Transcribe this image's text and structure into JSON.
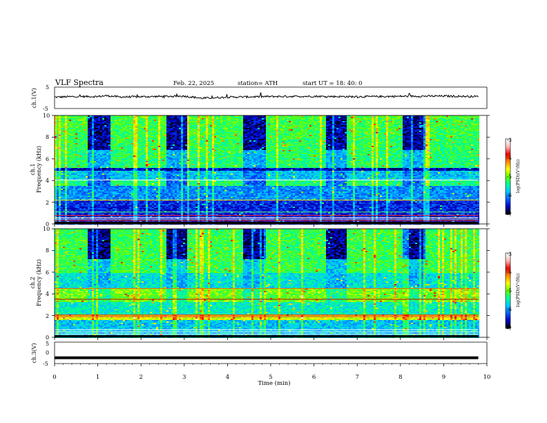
{
  "header": {
    "title": "VLF Spectra",
    "date": "Feb. 22, 2025",
    "station": "station= ATH",
    "start": "start UT =  18: 40: 0"
  },
  "chart_data": [
    {
      "type": "line",
      "panel": "ch1-waveform",
      "ylabel": "ch.1(V)",
      "ylim": [
        -5,
        5
      ],
      "yticks": [
        "5",
        "-5"
      ],
      "xlim": [
        0,
        10
      ],
      "series": [
        {
          "values_note_free": true,
          "x": [
            0,
            0.5,
            1,
            1.2,
            1.5,
            2,
            3,
            3.4,
            4,
            5,
            6,
            7,
            8,
            9,
            9.8
          ],
          "values": [
            0.3,
            0.6,
            0.6,
            1.0,
            0.4,
            0.5,
            0.8,
            -0.2,
            0.3,
            0.6,
            0.7,
            0.5,
            0.7,
            0.8,
            0.6
          ]
        }
      ]
    },
    {
      "type": "heatmap",
      "panel": "ch1-spectrogram",
      "ylabel": "Frequency (kHz)",
      "channel_label": "ch.1",
      "xlim": [
        0,
        10
      ],
      "ylim": [
        0,
        10
      ],
      "yticks": [
        "0",
        "2",
        "4",
        "6",
        "8",
        "10"
      ],
      "data_end_min": 9.8,
      "quiet_intervals_min": [
        [
          0.75,
          1.25
        ],
        [
          2.55,
          3.05
        ],
        [
          4.35,
          4.85
        ],
        [
          6.25,
          6.75
        ],
        [
          8.05,
          8.55
        ]
      ],
      "colorbar": {
        "label": "log(PSD)(V²/Hz)",
        "range": [
          -7,
          -3
        ],
        "ticks": [
          "-3",
          "-4",
          "-5",
          "-6",
          "-7"
        ]
      }
    },
    {
      "type": "heatmap",
      "panel": "ch2-spectrogram",
      "ylabel": "Frequency (kHz)",
      "channel_label": "ch.2",
      "xlim": [
        0,
        10
      ],
      "ylim": [
        0,
        10
      ],
      "yticks": [
        "0",
        "2",
        "4",
        "6",
        "8",
        "10"
      ],
      "data_end_min": 9.8,
      "quiet_intervals_min": [
        [
          0.75,
          1.25
        ],
        [
          2.55,
          3.05
        ],
        [
          4.35,
          4.85
        ],
        [
          6.25,
          6.75
        ],
        [
          8.05,
          8.55
        ]
      ],
      "colorbar": {
        "label": "log(PSD)(V²/Hz)",
        "range": [
          -7,
          -3
        ],
        "ticks": [
          "-3",
          "-4",
          "-5",
          "-6",
          "-7"
        ]
      }
    },
    {
      "type": "line",
      "panel": "ch3-waveform",
      "ylabel": "ch.3(V)",
      "ylim": [
        -5,
        5
      ],
      "yticks": [
        "5",
        "0",
        "-5"
      ],
      "xlim": [
        0,
        10
      ],
      "series": [
        {
          "x": [
            0,
            9.8
          ],
          "values": [
            -2.3,
            -2.3
          ]
        }
      ],
      "xlabel": "Time (min)",
      "xticks": [
        "0",
        "1",
        "2",
        "3",
        "4",
        "5",
        "6",
        "7",
        "8",
        "9",
        "10"
      ]
    }
  ],
  "colors": {
    "colormap": [
      "#000000",
      "#0000c8",
      "#0064ff",
      "#00c8ff",
      "#00ff96",
      "#64ff00",
      "#ffff00",
      "#ff8c00",
      "#e60000",
      "#ffb4b4",
      "#ffffff"
    ]
  }
}
